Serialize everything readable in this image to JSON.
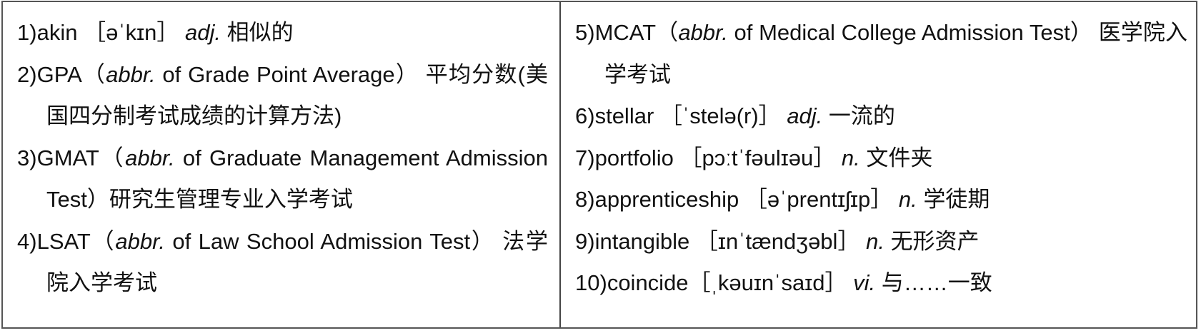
{
  "left_column": [
    {
      "num": "1)",
      "term": "akin",
      "pron": "［əˈkɪn］",
      "pos": "adj.",
      "def": "相似的"
    },
    {
      "num": "2)",
      "term": "GPA（",
      "abbr": "abbr.",
      "expansion": "of Grade Point Average）",
      "def": "平均分数(美国四分制考试成绩的计算方法)"
    },
    {
      "num": "3)",
      "term": "GMAT（",
      "abbr": "abbr.",
      "expansion": "of Graduate Management Admission Test）",
      "def": "研究生管理专业入学考试"
    },
    {
      "num": "4)",
      "term": "LSAT（",
      "abbr": "abbr.",
      "expansion": "of Law School Admission Test）",
      "def": "法学院入学考试"
    }
  ],
  "right_column": [
    {
      "num": "5)",
      "term": "MCAT（",
      "abbr": "abbr.",
      "expansion": "of Medical College Admission Test）",
      "def": "医学院入学考试"
    },
    {
      "num": "6)",
      "term": "stellar",
      "pron": "［ˈstelə(r)］",
      "pos": "adj.",
      "def": "一流的"
    },
    {
      "num": "7)",
      "term": "portfolio",
      "pron": "［pɔːtˈfəulɪəu］",
      "pos": "n.",
      "def": "文件夹"
    },
    {
      "num": "8)",
      "term": "apprenticeship",
      "pron": "［əˈprentɪʃɪp］",
      "pos": "n.",
      "def": "学徒期"
    },
    {
      "num": "9)",
      "term": "intangible",
      "pron": "［ɪnˈtændʒəbl］",
      "pos": "n.",
      "def": "无形资产"
    },
    {
      "num": "10)",
      "term": "coincide",
      "pron": "［ˌkəuɪnˈsaɪd］",
      "pos": "vi.",
      "def": "与……一致"
    }
  ]
}
